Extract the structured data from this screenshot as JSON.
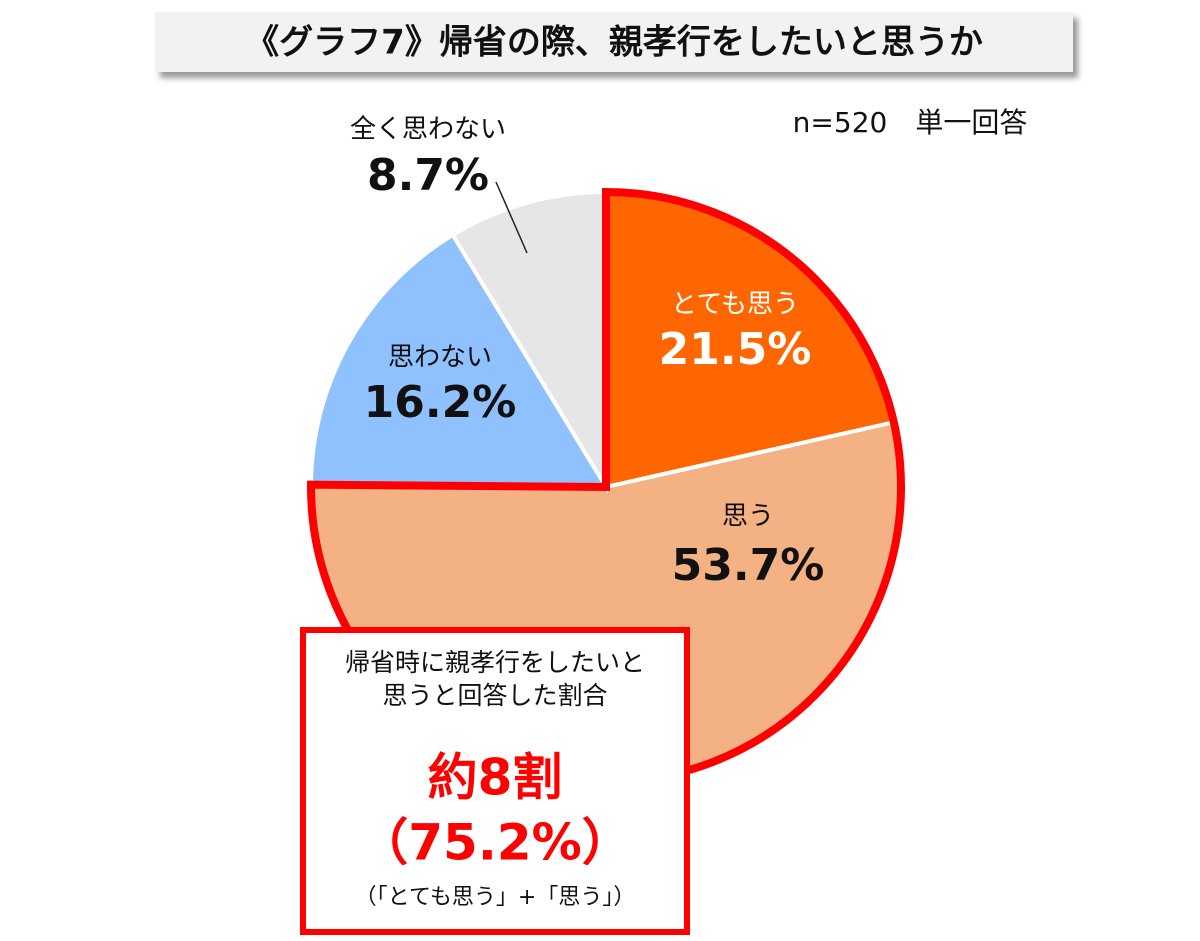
{
  "chart_data": {
    "type": "pie",
    "title": "《グラフ7》帰省の際、親孝行をしたいと思うか",
    "note": "n=520　単一回答",
    "categories": [
      "とても思う",
      "思う",
      "思わない",
      "全く思わない"
    ],
    "values": [
      21.5,
      53.7,
      16.2,
      8.7
    ],
    "value_labels": [
      "21.5%",
      "53.7%",
      "16.2%",
      "8.7%"
    ],
    "colors": [
      "#ff6600",
      "#f4b183",
      "#8fc1ff",
      "#e6e6e6"
    ],
    "callout": {
      "lines": [
        "帰省時に親孝行をしたいと",
        "思うと回答した割合"
      ],
      "headline": "約8割",
      "figure": "（75.2%）",
      "detail": "（「とても思う」+「思う」）"
    }
  }
}
